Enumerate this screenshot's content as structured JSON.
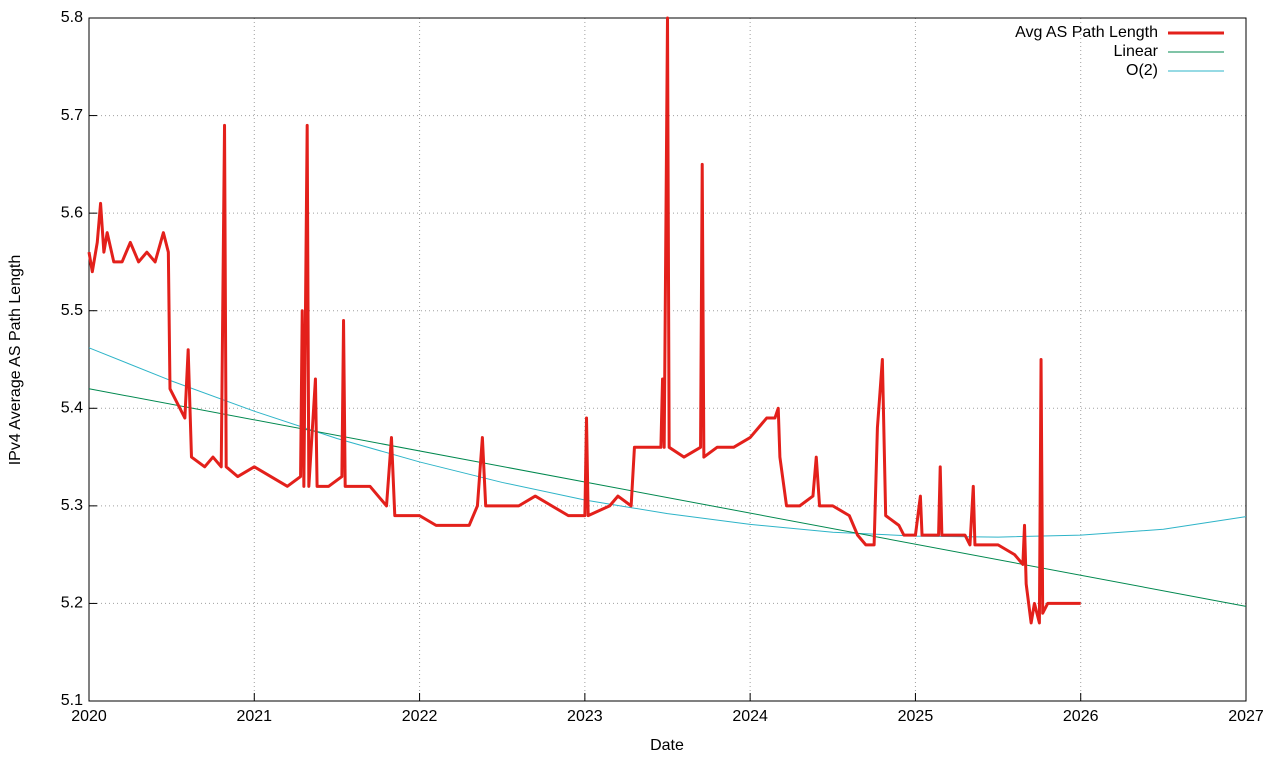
{
  "chart_data": {
    "type": "line",
    "x_label": "Date",
    "y_label": "IPv4 Average AS Path Length",
    "xlim": [
      2020,
      2027
    ],
    "xticks": [
      2020,
      2021,
      2022,
      2023,
      2024,
      2025,
      2026,
      2027
    ],
    "ylim": [
      5.1,
      5.8
    ],
    "yticks": [
      5.1,
      5.2,
      5.3,
      5.4,
      5.5,
      5.6,
      5.7,
      5.8
    ],
    "grid": true,
    "legend": "top-right",
    "series": [
      {
        "name": "Avg AS Path Length",
        "color": "#e3201b",
        "width": 3,
        "x": [
          2020.0,
          2020.02,
          2020.05,
          2020.07,
          2020.09,
          2020.11,
          2020.15,
          2020.2,
          2020.25,
          2020.3,
          2020.35,
          2020.4,
          2020.45,
          2020.48,
          2020.49,
          2020.52,
          2020.55,
          2020.58,
          2020.6,
          2020.62,
          2020.7,
          2020.75,
          2020.8,
          2020.82,
          2020.83,
          2020.9,
          2021.0,
          2021.1,
          2021.2,
          2021.28,
          2021.29,
          2021.3,
          2021.32,
          2021.33,
          2021.37,
          2021.38,
          2021.45,
          2021.53,
          2021.54,
          2021.55,
          2021.7,
          2021.8,
          2021.83,
          2021.85,
          2022.0,
          2022.1,
          2022.3,
          2022.35,
          2022.38,
          2022.4,
          2022.5,
          2022.6,
          2022.7,
          2022.8,
          2022.9,
          2023.0,
          2023.01,
          2023.02,
          2023.15,
          2023.2,
          2023.28,
          2023.3,
          2023.4,
          2023.46,
          2023.47,
          2023.48,
          2023.5,
          2023.51,
          2023.6,
          2023.7,
          2023.71,
          2023.72,
          2023.8,
          2023.9,
          2024.0,
          2024.1,
          2024.15,
          2024.17,
          2024.18,
          2024.22,
          2024.3,
          2024.38,
          2024.4,
          2024.42,
          2024.5,
          2024.6,
          2024.65,
          2024.7,
          2024.75,
          2024.77,
          2024.8,
          2024.82,
          2024.9,
          2024.93,
          2025.0,
          2025.03,
          2025.04,
          2025.14,
          2025.15,
          2025.16,
          2025.3,
          2025.33,
          2025.35,
          2025.36,
          2025.5,
          2025.6,
          2025.65,
          2025.66,
          2025.67,
          2025.7,
          2025.72,
          2025.75,
          2025.76,
          2025.77,
          2025.8,
          2025.9,
          2026.0
        ],
        "values": [
          5.56,
          5.54,
          5.57,
          5.61,
          5.56,
          5.58,
          5.55,
          5.55,
          5.57,
          5.55,
          5.56,
          5.55,
          5.58,
          5.56,
          5.42,
          5.41,
          5.4,
          5.39,
          5.46,
          5.35,
          5.34,
          5.35,
          5.34,
          5.69,
          5.34,
          5.33,
          5.34,
          5.33,
          5.32,
          5.33,
          5.5,
          5.32,
          5.69,
          5.32,
          5.43,
          5.32,
          5.32,
          5.33,
          5.49,
          5.32,
          5.32,
          5.3,
          5.37,
          5.29,
          5.29,
          5.28,
          5.28,
          5.3,
          5.37,
          5.3,
          5.3,
          5.3,
          5.31,
          5.3,
          5.29,
          5.29,
          5.39,
          5.29,
          5.3,
          5.31,
          5.3,
          5.36,
          5.36,
          5.36,
          5.43,
          5.36,
          5.8,
          5.36,
          5.35,
          5.36,
          5.65,
          5.35,
          5.36,
          5.36,
          5.37,
          5.39,
          5.39,
          5.4,
          5.35,
          5.3,
          5.3,
          5.31,
          5.35,
          5.3,
          5.3,
          5.29,
          5.27,
          5.26,
          5.26,
          5.38,
          5.45,
          5.29,
          5.28,
          5.27,
          5.27,
          5.31,
          5.27,
          5.27,
          5.34,
          5.27,
          5.27,
          5.26,
          5.32,
          5.26,
          5.26,
          5.25,
          5.24,
          5.28,
          5.22,
          5.18,
          5.2,
          5.18,
          5.45,
          5.19,
          5.2,
          5.2,
          5.2
        ]
      },
      {
        "name": "Linear",
        "color": "#00884f",
        "width": 1,
        "x": [
          2020,
          2027
        ],
        "values": [
          5.42,
          5.197
        ]
      },
      {
        "name": "O(2)",
        "color": "#2eb4c8",
        "width": 1,
        "x": [
          2020,
          2020.5,
          2021,
          2021.5,
          2022,
          2022.5,
          2023,
          2023.5,
          2024,
          2024.5,
          2025,
          2025.5,
          2026,
          2026.5,
          2027
        ],
        "values": [
          5.462,
          5.428,
          5.397,
          5.369,
          5.345,
          5.324,
          5.306,
          5.292,
          5.281,
          5.273,
          5.269,
          5.268,
          5.27,
          5.276,
          5.289
        ]
      }
    ]
  }
}
